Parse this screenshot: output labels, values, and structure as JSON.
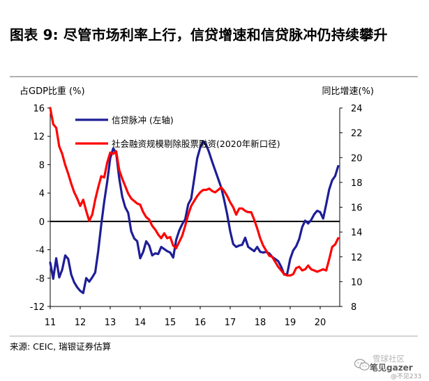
{
  "title": "图表 9: 尽管市场利率上行，信贷增速和信贷脉冲仍持续攀升",
  "source": "来源: CEIC, 瑞银证券估算",
  "watermark": {
    "brand": "雪球社区",
    "name": "笔见gazer",
    "handle": "@不见233"
  },
  "chart_data": {
    "type": "line",
    "ylabel_left": "占GDP比重 (%)",
    "ylabel_right": "同比增速(%)",
    "ylim_left": [
      -12,
      16
    ],
    "ylim_right": [
      8,
      24
    ],
    "yticks_left": [
      "16",
      "12",
      "8",
      "4",
      "0",
      "-4",
      "-8",
      "-12"
    ],
    "yticks_right": [
      "24",
      "22",
      "20",
      "18",
      "16",
      "14",
      "12",
      "10",
      "8"
    ],
    "xlim": [
      2011.0,
      2020.67
    ],
    "xticks": [
      "11",
      "12",
      "13",
      "14",
      "15",
      "16",
      "17",
      "18",
      "19",
      "20"
    ],
    "colors": {
      "credit_impulse": "#1e1e96",
      "tsf_growth": "#ff0000"
    },
    "series": [
      {
        "name": "信贷脉冲 (左轴)",
        "axis": "left",
        "x": [
          2011.0,
          2011.1,
          2011.2,
          2011.3,
          2011.4,
          2011.5,
          2011.6,
          2011.7,
          2011.8,
          2011.9,
          2012.0,
          2012.1,
          2012.2,
          2012.3,
          2012.4,
          2012.5,
          2012.6,
          2012.7,
          2012.8,
          2012.9,
          2013.0,
          2013.1,
          2013.2,
          2013.3,
          2013.4,
          2013.5,
          2013.6,
          2013.7,
          2013.8,
          2013.9,
          2014.0,
          2014.1,
          2014.2,
          2014.3,
          2014.4,
          2014.5,
          2014.6,
          2014.7,
          2014.8,
          2014.9,
          2015.0,
          2015.1,
          2015.2,
          2015.3,
          2015.4,
          2015.5,
          2015.6,
          2015.7,
          2015.8,
          2015.9,
          2016.0,
          2016.1,
          2016.2,
          2016.3,
          2016.4,
          2016.5,
          2016.6,
          2016.7,
          2016.8,
          2016.9,
          2017.0,
          2017.1,
          2017.2,
          2017.3,
          2017.4,
          2017.5,
          2017.6,
          2017.7,
          2017.8,
          2017.9,
          2018.0,
          2018.1,
          2018.2,
          2018.3,
          2018.4,
          2018.5,
          2018.6,
          2018.7,
          2018.8,
          2018.9,
          2019.0,
          2019.1,
          2019.2,
          2019.3,
          2019.4,
          2019.5,
          2019.6,
          2019.7,
          2019.8,
          2019.9,
          2020.0,
          2020.1,
          2020.2,
          2020.3,
          2020.4,
          2020.5,
          2020.6
        ],
        "values": [
          -5.8,
          -8.1,
          -5.2,
          -7.9,
          -6.8,
          -4.8,
          -5.3,
          -7.5,
          -8.6,
          -9.3,
          -9.8,
          -10.1,
          -8.0,
          -8.5,
          -7.9,
          -7.2,
          -4.2,
          -0.5,
          2.8,
          5.6,
          8.9,
          10.3,
          9.6,
          6.1,
          3.5,
          2.0,
          1.2,
          -1.4,
          -2.4,
          -2.8,
          -5.2,
          -4.3,
          -2.8,
          -3.4,
          -4.8,
          -4.5,
          -4.6,
          -3.6,
          -3.9,
          -4.2,
          -4.4,
          -5.1,
          -2.6,
          -1.3,
          -0.4,
          0.3,
          2.4,
          3.2,
          6.0,
          8.9,
          10.4,
          11.3,
          10.8,
          9.7,
          8.4,
          7.2,
          6.0,
          4.8,
          3.0,
          1.0,
          -1.4,
          -3.2,
          -3.6,
          -3.4,
          -3.3,
          -2.3,
          -3.6,
          -3.9,
          -4.2,
          -3.6,
          -4.3,
          -4.4,
          -4.3,
          -4.5,
          -5.0,
          -5.3,
          -5.6,
          -6.4,
          -7.5,
          -7.4,
          -5.3,
          -4.1,
          -3.5,
          -2.5,
          -0.8,
          0.1,
          -0.3,
          0.2,
          1.0,
          1.5,
          1.3,
          0.4,
          2.4,
          4.5,
          5.8,
          6.4,
          7.8
        ]
      },
      {
        "name": "社会融资规模剔除股票融资(2020年新口径)",
        "axis": "right",
        "x": [
          2011.0,
          2011.1,
          2011.2,
          2011.3,
          2011.4,
          2011.5,
          2011.6,
          2011.7,
          2011.8,
          2011.9,
          2012.0,
          2012.1,
          2012.2,
          2012.3,
          2012.4,
          2012.5,
          2012.6,
          2012.7,
          2012.8,
          2012.9,
          2013.0,
          2013.1,
          2013.2,
          2013.3,
          2013.4,
          2013.5,
          2013.6,
          2013.7,
          2013.8,
          2013.9,
          2014.0,
          2014.1,
          2014.2,
          2014.3,
          2014.4,
          2014.5,
          2014.6,
          2014.7,
          2014.8,
          2014.9,
          2015.0,
          2015.1,
          2015.2,
          2015.3,
          2015.4,
          2015.5,
          2015.6,
          2015.7,
          2015.8,
          2015.9,
          2016.0,
          2016.1,
          2016.2,
          2016.3,
          2016.4,
          2016.5,
          2016.6,
          2016.7,
          2016.8,
          2016.9,
          2017.0,
          2017.1,
          2017.2,
          2017.3,
          2017.4,
          2017.5,
          2017.6,
          2017.7,
          2017.8,
          2017.9,
          2018.0,
          2018.1,
          2018.2,
          2018.3,
          2018.4,
          2018.5,
          2018.6,
          2018.7,
          2018.8,
          2018.9,
          2019.0,
          2019.1,
          2019.2,
          2019.3,
          2019.4,
          2019.5,
          2019.6,
          2019.7,
          2019.8,
          2019.9,
          2020.0,
          2020.1,
          2020.2,
          2020.3,
          2020.4,
          2020.5,
          2020.6
        ],
        "values": [
          24.0,
          22.7,
          22.4,
          20.9,
          20.3,
          19.4,
          18.7,
          17.9,
          17.2,
          16.7,
          16.1,
          16.6,
          15.7,
          14.9,
          15.4,
          16.6,
          17.6,
          18.5,
          18.4,
          19.6,
          20.4,
          20.3,
          20.5,
          19.0,
          18.3,
          17.7,
          17.1,
          16.7,
          16.5,
          16.3,
          16.2,
          15.6,
          15.2,
          15.0,
          14.5,
          14.2,
          13.8,
          13.5,
          13.9,
          13.5,
          13.6,
          12.9,
          12.7,
          13.2,
          13.7,
          14.5,
          15.4,
          16.1,
          16.5,
          16.9,
          17.2,
          17.4,
          17.4,
          17.5,
          17.3,
          17.2,
          17.4,
          17.6,
          17.3,
          16.9,
          16.4,
          16.0,
          15.4,
          15.9,
          15.9,
          15.7,
          15.6,
          15.6,
          15.0,
          14.3,
          13.5,
          12.9,
          12.5,
          12.1,
          12.0,
          11.6,
          11.2,
          10.9,
          10.6,
          10.5,
          10.5,
          10.6,
          11.1,
          11.2,
          10.9,
          11.0,
          11.3,
          11.0,
          10.9,
          10.8,
          10.9,
          11.0,
          10.9,
          11.8,
          12.8,
          13.0,
          13.5
        ]
      }
    ]
  }
}
